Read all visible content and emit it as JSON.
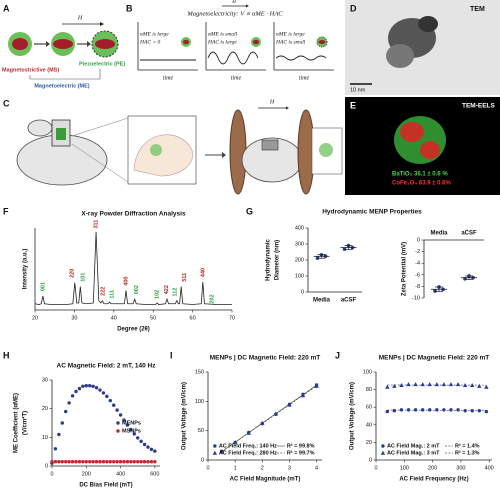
{
  "panels": {
    "labels": [
      "A",
      "B",
      "C",
      "D",
      "E",
      "F",
      "G",
      "H",
      "I",
      "J"
    ]
  },
  "panel_a": {
    "field": "H",
    "magnetostrictive": "Magnetostrictive (MS)",
    "piezoelectric": "Piezoelectric (PE)",
    "magnetoelectric": "Magnetoelectric (ME)"
  },
  "panel_b": {
    "field": "H",
    "title": "Magnetoelectricity: V ∝ αME · HAC",
    "cases": [
      [
        "αME is large",
        "HAC = 0"
      ],
      [
        "αME is small",
        "HAC is large"
      ],
      [
        "αME is large",
        "HAC is small"
      ]
    ],
    "axis_label": "time"
  },
  "panel_c": {
    "field": "H"
  },
  "panel_d": {
    "label": "TEM",
    "scale": "10 nm"
  },
  "panel_e": {
    "label": "TEM-EELS",
    "phases": [
      {
        "text": "BaTiO₃ 36.1 ± 0.6 %",
        "color": "#4cd64c"
      },
      {
        "text": "CoFe₂O₄ 63.9 ± 0.6%",
        "color": "#ff3030"
      }
    ]
  },
  "chart_data": [
    {
      "type": "line",
      "title": "X-ray Powder Diffraction Analysis",
      "xlabel": "Degree (2θ)",
      "ylabel": "Intensity (a.u.)",
      "color": "#222222",
      "x": [
        20,
        21,
        21.6,
        22,
        22.4,
        24,
        26,
        28,
        29.6,
        30.1,
        30.6,
        31.1,
        31.5,
        31.9,
        33,
        34.8,
        35.5,
        36.2,
        36.7,
        37.1,
        37.5,
        38.5,
        38.9,
        39.3,
        41,
        42.7,
        43.1,
        43.5,
        44.9,
        45.3,
        45.7,
        48,
        50.6,
        51,
        51.4,
        53.1,
        53.5,
        53.9,
        55.6,
        56,
        56.4,
        56.7,
        57.1,
        57.5,
        60,
        62.2,
        62.6,
        63,
        66,
        70
      ],
      "values": [
        8,
        7,
        8,
        18,
        8,
        7,
        7,
        7,
        8,
        35,
        9,
        9,
        30,
        9,
        8,
        9,
        100,
        12,
        9,
        12,
        8,
        8,
        10,
        8,
        8,
        8,
        25,
        8,
        8,
        14,
        8,
        7,
        7,
        9,
        7,
        8,
        14,
        8,
        8,
        12,
        8,
        8,
        30,
        8,
        7,
        8,
        36,
        8,
        7,
        7
      ],
      "xlim": [
        20,
        70
      ],
      "xticks": [
        20,
        30,
        40,
        50,
        60,
        70
      ],
      "ylim": [
        0,
        105
      ],
      "annotations": [
        {
          "text": "001",
          "x": 22,
          "y": 30,
          "color": "#2a9d3a"
        },
        {
          "text": "220",
          "x": 29.4,
          "y": 47,
          "color": "#b22222"
        },
        {
          "text": "101",
          "x": 32.2,
          "y": 42,
          "color": "#2a9d3a"
        },
        {
          "text": "311",
          "x": 35.5,
          "y": 110,
          "color": "#b22222"
        },
        {
          "text": "222",
          "x": 37.3,
          "y": 24,
          "color": "#b22222"
        },
        {
          "text": "111",
          "x": 39.5,
          "y": 20,
          "color": "#2a9d3a"
        },
        {
          "text": "400",
          "x": 43.1,
          "y": 37,
          "color": "#b22222"
        },
        {
          "text": "002",
          "x": 45.8,
          "y": 26,
          "color": "#2a9d3a"
        },
        {
          "text": "102",
          "x": 51,
          "y": 20,
          "color": "#2a9d3a"
        },
        {
          "text": "422",
          "x": 53.4,
          "y": 26,
          "color": "#b22222"
        },
        {
          "text": "112",
          "x": 55.6,
          "y": 23,
          "color": "#2a9d3a"
        },
        {
          "text": "511",
          "x": 58,
          "y": 42,
          "color": "#b22222"
        },
        {
          "text": "440",
          "x": 62.6,
          "y": 48,
          "color": "#b22222"
        },
        {
          "text": "202",
          "x": 65,
          "y": 14,
          "color": "#2a9d3a"
        }
      ]
    },
    {
      "type": "dot",
      "title": "Hydrodynamic MENP Properties",
      "ylabel": [
        "Hydrodynamic",
        "Diameter (nm)"
      ],
      "categories": [
        "Media",
        "aCSF"
      ],
      "points": [
        [
          212,
          232,
          224
        ],
        [
          268,
          290,
          277
        ]
      ],
      "means": [
        223,
        278
      ],
      "errors": [
        12,
        12
      ],
      "color": "#2b3990",
      "ylim": [
        0,
        400
      ],
      "yticks": [
        0,
        100,
        200,
        300,
        400
      ]
    },
    {
      "type": "dot",
      "ylabel": "Zeta Potential (mV)",
      "categories": [
        "Media",
        "aCSF"
      ],
      "category_axis": "top",
      "points": [
        [
          -8.8,
          -8.1,
          -8.5
        ],
        [
          -6.7,
          -6.2,
          -6.5
        ]
      ],
      "means": [
        -8.5,
        -6.5
      ],
      "errors": [
        0.4,
        0.3
      ],
      "color": "#2b3990",
      "ylim": [
        -10,
        0
      ],
      "yticks": [
        -10,
        -8,
        -6,
        -4,
        -2,
        0
      ]
    },
    {
      "type": "scatter",
      "title": "AC Magnetic Field: 2 mT, 140 Hz",
      "xlabel": "DC Bias Field (mT)",
      "ylabel": [
        "ME Coefficient (αME)",
        "(V/cm*T)"
      ],
      "x": [
        0,
        20,
        40,
        60,
        80,
        100,
        120,
        140,
        160,
        180,
        200,
        220,
        240,
        260,
        280,
        300,
        320,
        340,
        360,
        380,
        400,
        420,
        440,
        460,
        480,
        500,
        520,
        540,
        560,
        580,
        600
      ],
      "series": [
        {
          "name": "MENPs",
          "color": "#2b3990",
          "marker": "circle",
          "values": [
            1,
            6,
            11,
            15,
            19,
            22,
            24.5,
            26,
            27,
            27.8,
            28,
            28,
            27.8,
            27.3,
            26.5,
            25.5,
            24.3,
            22.8,
            21.2,
            19.5,
            17.8,
            16,
            14.3,
            12.7,
            11.2,
            9.8,
            8.6,
            7.5,
            6.6,
            5.8,
            5.2
          ]
        },
        {
          "name": "MSNPs",
          "color": "#c0272d",
          "marker": "circle",
          "values": [
            1.5,
            1.5,
            1.5,
            1.5,
            1.5,
            1.5,
            1.5,
            1.5,
            1.5,
            1.5,
            1.5,
            1.5,
            1.5,
            1.5,
            1.5,
            1.5,
            1.5,
            1.5,
            1.5,
            1.5,
            1.5,
            1.5,
            1.5,
            1.5,
            1.5,
            1.5,
            1.5,
            1.5,
            1.5,
            1.5,
            1.5
          ]
        }
      ],
      "xlim": [
        0,
        630
      ],
      "xticks": [
        0,
        200,
        400,
        600
      ],
      "ylim": [
        0,
        30
      ],
      "yticks": [
        0,
        10,
        20,
        30
      ],
      "legend": "right"
    },
    {
      "type": "scatter",
      "title": "MENPs | DC Magnetic Field: 220 mT",
      "xlabel": "AC Field Magnitude (mT)",
      "ylabel": "Output Voltage (mV/cm)",
      "x": [
        0.5,
        1,
        1.5,
        2,
        2.5,
        3,
        3.5,
        4
      ],
      "series": [
        {
          "name": "AC Field Freq.: 140 Hz",
          "color": "#2b3990",
          "marker": "circle",
          "fit_label": "R² = 99.8%",
          "line_style": "solid",
          "values": [
            15,
            30,
            47,
            62,
            78,
            95,
            112,
            128
          ]
        },
        {
          "name": "AC Field Freq.: 280 Hz",
          "color": "#2b3990",
          "marker": "triangle",
          "fit_label": "R² = 99.7%",
          "line_style": "dashed",
          "values": [
            14,
            30,
            46,
            63,
            79,
            94,
            110,
            126
          ]
        }
      ],
      "xlim": [
        0,
        4.2
      ],
      "xticks": [
        0,
        1,
        2,
        3,
        4
      ],
      "ylim": [
        0,
        150
      ],
      "yticks": [
        0,
        50,
        100,
        150
      ],
      "legend": "lower-right"
    },
    {
      "type": "scatter",
      "title": "MENPs | DC Magnetic Field: 220 mT",
      "xlabel": "AC Field Frequency (Hz)",
      "ylabel": "Output Voltage (mV/cm)",
      "x": [
        40,
        65,
        90,
        115,
        140,
        165,
        190,
        215,
        240,
        265,
        290,
        315,
        340,
        365,
        390
      ],
      "series": [
        {
          "name": "AC Field Mag.: 2 mT",
          "color": "#2b3990",
          "marker": "circle",
          "fit_label": "R² = 1.4%",
          "line_style": "dashed",
          "values": [
            55,
            56,
            57,
            57,
            57,
            57,
            57,
            57,
            57,
            57,
            57,
            56,
            56,
            56,
            55
          ]
        },
        {
          "name": "AC Field Mag.: 3 mT",
          "color": "#2b3990",
          "marker": "triangle",
          "fit_label": "R² = 1.3%",
          "line_style": "dashed",
          "values": [
            83,
            84,
            85,
            86,
            86,
            86,
            86,
            86,
            86,
            86,
            86,
            85,
            85,
            84,
            83
          ]
        }
      ],
      "xlim": [
        0,
        410
      ],
      "xticks": [
        0,
        100,
        200,
        300,
        400
      ],
      "ylim": [
        0,
        100
      ],
      "yticks": [
        0,
        20,
        40,
        60,
        80,
        100
      ],
      "legend": "lower-right"
    }
  ]
}
